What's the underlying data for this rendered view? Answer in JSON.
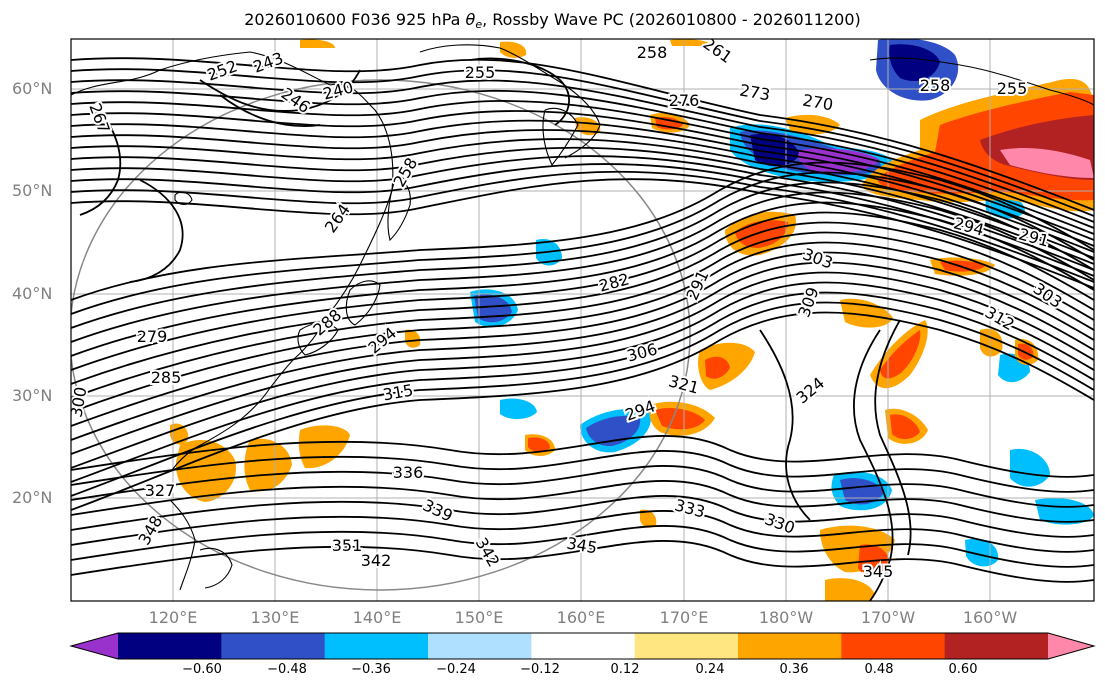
{
  "title": {
    "prefix": "2026010600 F036 925 hPa ",
    "theta": "θ",
    "subscript": "e",
    "suffix": ", Rossby Wave PC (2026010800 - 2026011200)"
  },
  "map": {
    "lat_labels": [
      "60°N",
      "50°N",
      "40°N",
      "30°N",
      "20°N"
    ],
    "lon_labels": [
      "120°E",
      "130°E",
      "140°E",
      "150°E",
      "160°E",
      "170°E",
      "180°W",
      "170°W",
      "160°W"
    ],
    "contour_labels": [
      "252",
      "243",
      "240",
      "246",
      "255",
      "258",
      "261",
      "267",
      "276",
      "273",
      "270",
      "255",
      "258",
      "258",
      "264",
      "282",
      "291",
      "294",
      "291",
      "303",
      "303",
      "309",
      "312",
      "279",
      "285",
      "288",
      "294",
      "300",
      "306",
      "315",
      "321",
      "324",
      "294",
      "327",
      "336",
      "339",
      "333",
      "330",
      "348",
      "351",
      "342",
      "345",
      "342",
      "345"
    ],
    "colors": {
      "contour": "#000000",
      "coast": "#000000",
      "grid": "#b0b0b0",
      "circle": "#888888"
    }
  },
  "colorbar": {
    "ticks": [
      "−0.60",
      "−0.48",
      "−0.36",
      "−0.24",
      "−0.12",
      "0.12",
      "0.24",
      "0.36",
      "0.48",
      "0.60"
    ],
    "colors": [
      "#9932cc",
      "#000080",
      "#3050c8",
      "#00bfff",
      "#b0e0ff",
      "#ffffff",
      "#ffe680",
      "#ffa500",
      "#ff4500",
      "#b22222",
      "#ff88aa"
    ]
  },
  "chart_data": {
    "type": "heatmap",
    "title": "2026010600 F036 925 hPa θe, Rossby Wave PC (2026010800 - 2026011200)",
    "variable_contours": "925 hPa θe",
    "shaded_variable": "Rossby Wave PC",
    "lat_ticks": [
      "60°N",
      "50°N",
      "40°N",
      "30°N",
      "20°N"
    ],
    "lon_ticks": [
      "120°E",
      "130°E",
      "140°E",
      "150°E",
      "160°E",
      "170°E",
      "180°W",
      "170°W",
      "160°W"
    ],
    "contour_values": [
      240,
      243,
      246,
      252,
      255,
      258,
      261,
      264,
      267,
      270,
      273,
      276,
      279,
      282,
      285,
      288,
      291,
      294,
      300,
      303,
      306,
      309,
      312,
      315,
      321,
      324,
      327,
      330,
      333,
      336,
      339,
      342,
      345,
      348,
      351
    ],
    "colorbar_levels": [
      -0.6,
      -0.48,
      -0.36,
      -0.24,
      -0.12,
      0.12,
      0.24,
      0.36,
      0.48,
      0.6
    ],
    "grid": true
  }
}
